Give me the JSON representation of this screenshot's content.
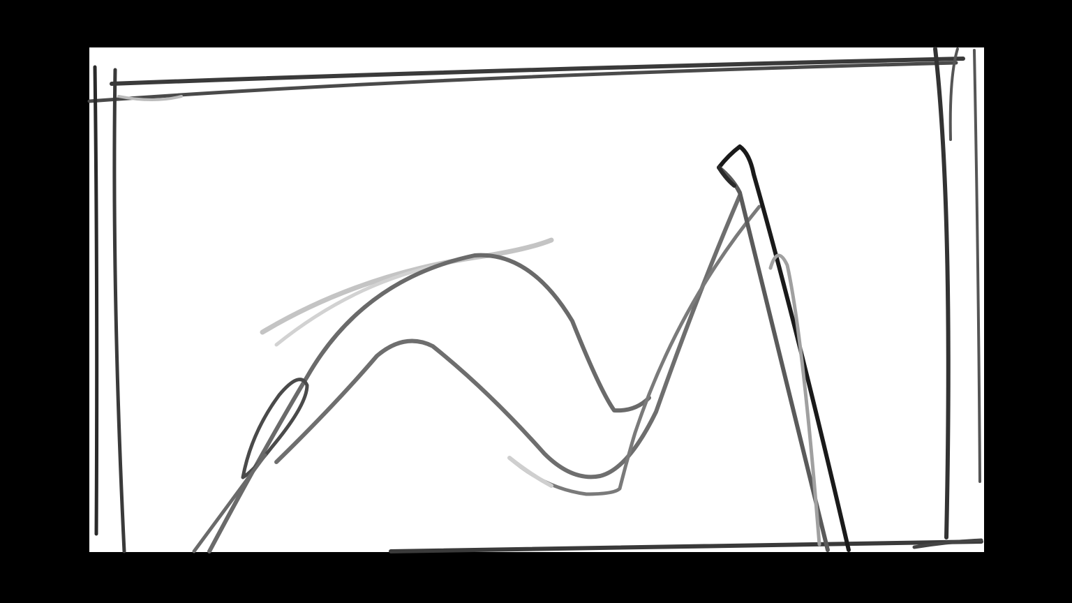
{
  "colors": {
    "background": "#000000",
    "canvas": "#ffffff",
    "dark_stroke": "#2a2a2a",
    "mid_stroke": "#555555",
    "light_stroke": "#9a9a9a",
    "faint_stroke": "#c8c8c8"
  },
  "icons": {
    "frame": "sketch-frame",
    "strokes": "pencil-strokes"
  }
}
